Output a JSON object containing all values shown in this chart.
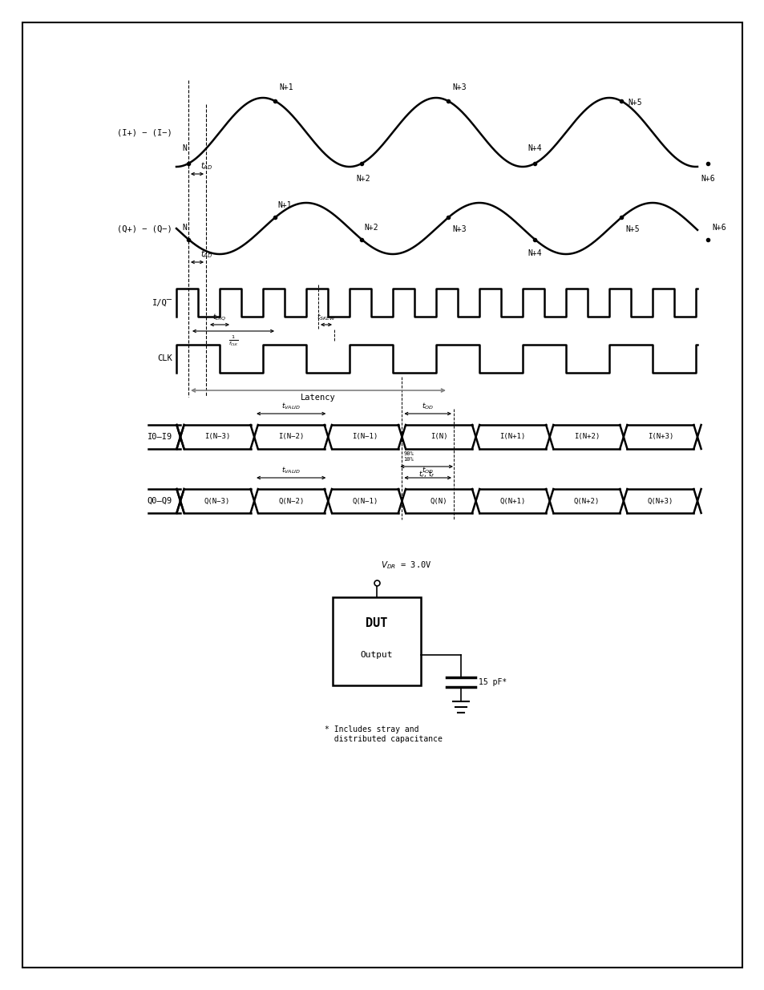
{
  "bg_color": "#ffffff",
  "fig_width": 9.54,
  "fig_height": 12.35,
  "dpi": 100,
  "sine_I_label": "(I+) − (I−)",
  "sine_Q_label": "(Q+) − (Q−)",
  "iq_label": "I/Q̅",
  "clk_label": "CLK",
  "io_label": "I0–I9",
  "qo_label": "Q0–Q9",
  "sample_labels_I": [
    "N",
    "N+1",
    "N+2",
    "N+3",
    "N+4",
    "N+5",
    "N+6"
  ],
  "sample_labels_Q": [
    "N",
    "N+1",
    "N+2",
    "N+3",
    "N+4",
    "N+5",
    "N+6"
  ],
  "data_I_labels": [
    "I(N−3)",
    "I(N−2)",
    "I(N−1)",
    "I(N)",
    "I(N+1)",
    "I(N+2)",
    "I(N+3)"
  ],
  "data_Q_labels": [
    "Q(N−3)",
    "Q(N−2)",
    "Q(N−1)",
    "Q(N)",
    "Q(N+1)",
    "Q(N+2)",
    "Q(N+3)"
  ],
  "latency_label": "Latency",
  "vdr_label": "V$_{DR}$ = 3.0V",
  "dut_label": "DUT",
  "output_label": "Output",
  "cap_label": "15 pF*",
  "footnote": "* Includes stray and\n  distributed capacitance"
}
